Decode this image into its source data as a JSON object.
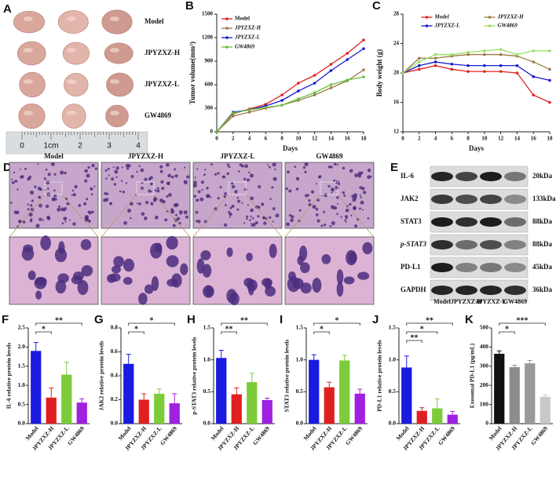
{
  "tumor_photo": {
    "panel": "A",
    "groups": [
      "Model",
      "JPYZXZ-H",
      "JPYZXZ-L",
      "GW4869"
    ],
    "ruler_labels": [
      "0",
      "1cm",
      "2",
      "3",
      "4"
    ]
  },
  "histology": {
    "panel": "D",
    "groups": [
      "Model",
      "JPYZXZ-H",
      "JPYZXZ-L",
      "GW4869"
    ]
  },
  "western_blot": {
    "panel": "E",
    "proteins": [
      "IL-6",
      "JAK2",
      "STAT3",
      "p-STAT3",
      "PD-L1",
      "GAPDH"
    ],
    "sizes": [
      "20kDa",
      "133kDa",
      "88kDa",
      "88kDa",
      "45kDa",
      "36kDa"
    ],
    "groups": [
      "Model",
      "JPYZXZ-H",
      "JPYZXZ-L",
      "GW4869"
    ]
  },
  "chart_data": [
    {
      "type": "line",
      "panel": "B",
      "xlabel": "Days",
      "ylabel": "Tumor volume(mm³)",
      "legend": "upper left",
      "x": [
        0,
        2,
        4,
        6,
        8,
        10,
        12,
        14,
        16,
        18
      ],
      "xlim": [
        0,
        18
      ],
      "xticks": [
        0,
        2,
        4,
        6,
        8,
        10,
        12,
        14,
        16,
        18
      ],
      "ylim": [
        0,
        1500
      ],
      "yticks": [
        0,
        300,
        600,
        900,
        1200,
        1500
      ],
      "series": [
        {
          "name": "Model",
          "color": "#e02020",
          "values": [
            0,
            230,
            290,
            350,
            470,
            620,
            720,
            860,
            1000,
            1170
          ]
        },
        {
          "name": "JPYZXZ-H",
          "color": "#9c7a4a",
          "values": [
            0,
            200,
            250,
            300,
            340,
            400,
            470,
            560,
            650,
            790
          ]
        },
        {
          "name": "JPYZXZ-L",
          "color": "#1a1ad0",
          "values": [
            0,
            250,
            280,
            330,
            400,
            520,
            620,
            780,
            920,
            1060
          ]
        },
        {
          "name": "GW4869",
          "color": "#66c23a",
          "values": [
            0,
            240,
            280,
            310,
            340,
            420,
            500,
            600,
            660,
            700
          ]
        }
      ]
    },
    {
      "type": "line",
      "panel": "C",
      "xlabel": "Days",
      "ylabel": "Body weight (g)",
      "legend": "upper center",
      "x": [
        0,
        2,
        4,
        6,
        8,
        10,
        12,
        14,
        16,
        18
      ],
      "xlim": [
        0,
        18
      ],
      "xticks": [
        0,
        2,
        4,
        6,
        8,
        10,
        12,
        14,
        16,
        18
      ],
      "ylim": [
        12,
        28
      ],
      "yticks": [
        12,
        16,
        20,
        24,
        28
      ],
      "series": [
        {
          "name": "Model",
          "color": "#e02020",
          "values": [
            20,
            20.5,
            21,
            20.5,
            20.2,
            20.2,
            20.2,
            20,
            17,
            16
          ]
        },
        {
          "name": "JPYZXZ-H",
          "color": "#9c7a4a",
          "values": [
            20,
            22,
            22,
            22.3,
            22.5,
            22.5,
            22.5,
            22.3,
            21.5,
            20.5
          ]
        },
        {
          "name": "JPYZXZ-L",
          "color": "#1a1ad0",
          "values": [
            20,
            21,
            21.5,
            21.2,
            21,
            21,
            21,
            21,
            19.5,
            19
          ]
        },
        {
          "name": "GW4869",
          "color": "#99e060",
          "values": [
            20,
            21.5,
            22.5,
            22.5,
            22.8,
            23,
            23.2,
            22.5,
            23,
            23
          ]
        }
      ]
    },
    {
      "type": "bar",
      "panel": "F",
      "ylabel": "IL-6 relative protein levels",
      "categories": [
        "Model",
        "JPYZXZ-H",
        "JPYZXZ-L",
        "GW4869"
      ],
      "values": [
        1.9,
        0.68,
        1.28,
        0.55
      ],
      "errors": [
        0.22,
        0.25,
        0.32,
        0.1
      ],
      "colors": [
        "#1a1ae0",
        "#e02020",
        "#7ccc3a",
        "#a020e0"
      ],
      "ylim": [
        0,
        2.5
      ],
      "yticks": [
        {
          "value": 0,
          "label": "0.0"
        },
        0.5,
        {
          "value": 1,
          "label": "1.0"
        },
        1.5,
        {
          "value": 2,
          "label": "2.0"
        },
        2.5
      ],
      "significance": [
        {
          "pair": [
            "Model",
            "GW4869"
          ],
          "label": "**"
        },
        {
          "pair": [
            "Model",
            "JPYZXZ-H"
          ],
          "label": "*"
        }
      ]
    },
    {
      "type": "bar",
      "panel": "G",
      "ylabel": "JAK2 relative protein levels",
      "categories": [
        "Model",
        "JPYZXZ-H",
        "JPYZXZ-L",
        "GW4869"
      ],
      "values": [
        0.5,
        0.2,
        0.25,
        0.17
      ],
      "errors": [
        0.08,
        0.05,
        0.04,
        0.08
      ],
      "colors": [
        "#1a1ae0",
        "#e02020",
        "#7ccc3a",
        "#a020e0"
      ],
      "ylim": [
        0,
        0.8
      ],
      "yticks": [
        {
          "value": 0,
          "label": "0.0"
        },
        0.2,
        0.4,
        0.6,
        0.8
      ],
      "significance": [
        {
          "pair": [
            "Model",
            "GW4869"
          ],
          "label": "*"
        },
        {
          "pair": [
            "Model",
            "JPYZXZ-H"
          ],
          "label": "*"
        }
      ]
    },
    {
      "type": "bar",
      "panel": "H",
      "ylabel": "p-STAT3 relative protein levels",
      "categories": [
        "Model",
        "JPYZXZ-H",
        "JPYZXZ-L",
        "GW4869"
      ],
      "values": [
        1.03,
        0.46,
        0.65,
        0.37
      ],
      "errors": [
        0.12,
        0.1,
        0.14,
        0.03
      ],
      "colors": [
        "#1a1ae0",
        "#e02020",
        "#7ccc3a",
        "#a020e0"
      ],
      "ylim": [
        0,
        1.5
      ],
      "yticks": [
        {
          "value": 0,
          "label": "0.0"
        },
        0.5,
        {
          "value": 1,
          "label": "1.0"
        },
        1.5
      ],
      "significance": [
        {
          "pair": [
            "Model",
            "GW4869"
          ],
          "label": "**"
        },
        {
          "pair": [
            "Model",
            "JPYZXZ-H"
          ],
          "label": "**"
        }
      ]
    },
    {
      "type": "bar",
      "panel": "I",
      "ylabel": "STAT3 relative protein levels",
      "categories": [
        "Model",
        "JPYZXZ-H",
        "JPYZXZ-L",
        "GW4869"
      ],
      "values": [
        1.0,
        0.57,
        0.99,
        0.47
      ],
      "errors": [
        0.08,
        0.08,
        0.08,
        0.07
      ],
      "colors": [
        "#1a1ae0",
        "#e02020",
        "#7ccc3a",
        "#a020e0"
      ],
      "ylim": [
        0,
        1.5
      ],
      "yticks": [
        {
          "value": 0,
          "label": "0.0"
        },
        0.5,
        {
          "value": 1,
          "label": "1.0"
        },
        1.5
      ],
      "significance": [
        {
          "pair": [
            "Model",
            "GW4869"
          ],
          "label": "*"
        },
        {
          "pair": [
            "Model",
            "JPYZXZ-H"
          ],
          "label": "*"
        }
      ]
    },
    {
      "type": "bar",
      "panel": "J",
      "ylabel": "PD-L1 relative protein levels",
      "categories": [
        "Model",
        "JPYZXZ-H",
        "JPYZXZ-L",
        "GW4869"
      ],
      "values": [
        0.88,
        0.2,
        0.24,
        0.14
      ],
      "errors": [
        0.18,
        0.05,
        0.15,
        0.05
      ],
      "colors": [
        "#1a1ae0",
        "#e02020",
        "#7ccc3a",
        "#a020e0"
      ],
      "ylim": [
        0,
        1.5
      ],
      "yticks": [
        {
          "value": 0,
          "label": "0.0"
        },
        0.5,
        {
          "value": 1,
          "label": "1.0"
        },
        1.5
      ],
      "significance": [
        {
          "pair": [
            "Model",
            "GW4869"
          ],
          "label": "**"
        },
        {
          "pair": [
            "Model",
            "JPYZXZ-L"
          ],
          "label": "*"
        },
        {
          "pair": [
            "Model",
            "JPYZXZ-H"
          ],
          "label": "**"
        }
      ]
    },
    {
      "type": "bar",
      "panel": "K",
      "ylabel": "Exosomal PD-L1 (pg/mL)",
      "categories": [
        "Model",
        "JPYZXZ-H",
        "JPYZXZ-L",
        "GW4869"
      ],
      "values": [
        365,
        295,
        315,
        140
      ],
      "errors": [
        15,
        10,
        15,
        10
      ],
      "colors": [
        "#111111",
        "#8c8c8c",
        "#9a9a9a",
        "#c8c8c8"
      ],
      "ylim": [
        0,
        500
      ],
      "yticks": [
        0,
        100,
        200,
        300,
        400,
        500
      ],
      "significance": [
        {
          "pair": [
            "Model",
            "GW4869"
          ],
          "label": "***"
        },
        {
          "pair": [
            "Model",
            "JPYZXZ-H"
          ],
          "label": "*"
        }
      ]
    }
  ]
}
